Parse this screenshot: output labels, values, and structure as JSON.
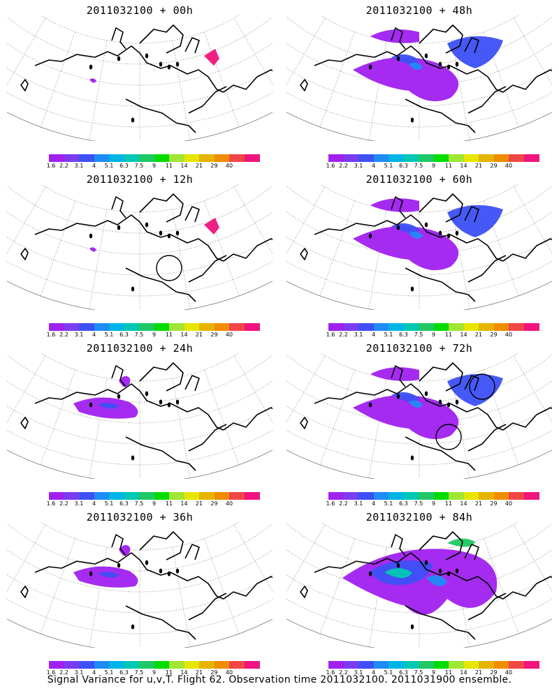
{
  "panels": [
    {
      "title": "2011032100 + 00h",
      "intensity": 0,
      "circles": 0
    },
    {
      "title": "2011032100 + 48h",
      "intensity": 2,
      "circles": 0
    },
    {
      "title": "2011032100 + 12h",
      "intensity": 0,
      "circles": 1
    },
    {
      "title": "2011032100 + 60h",
      "intensity": 2,
      "circles": 0
    },
    {
      "title": "2011032100 + 24h",
      "intensity": 1,
      "circles": 0
    },
    {
      "title": "2011032100 + 72h",
      "intensity": 2,
      "circles": 2
    },
    {
      "title": "2011032100 + 36h",
      "intensity": 1,
      "circles": 0
    },
    {
      "title": "2011032100 + 84h",
      "intensity": 3,
      "circles": 0
    }
  ],
  "colorbar": {
    "labels": [
      "1.6",
      "2.2",
      "3.1",
      "4",
      "5.1",
      "6.3",
      "7.5",
      "9",
      "11",
      "14",
      "21",
      "29",
      "40"
    ],
    "colors": [
      "#a020f0",
      "#7b3cf0",
      "#3c50f5",
      "#1e8cf5",
      "#00b4e6",
      "#00c8b4",
      "#1ec864",
      "#00dc00",
      "#a0e632",
      "#e6e600",
      "#e6b400",
      "#f08c00",
      "#f04646",
      "#f0147d"
    ]
  },
  "caption": "Signal Variance for u,v,T. Flight 62. Observation time 2011032100. 2011031900 ensemble."
}
